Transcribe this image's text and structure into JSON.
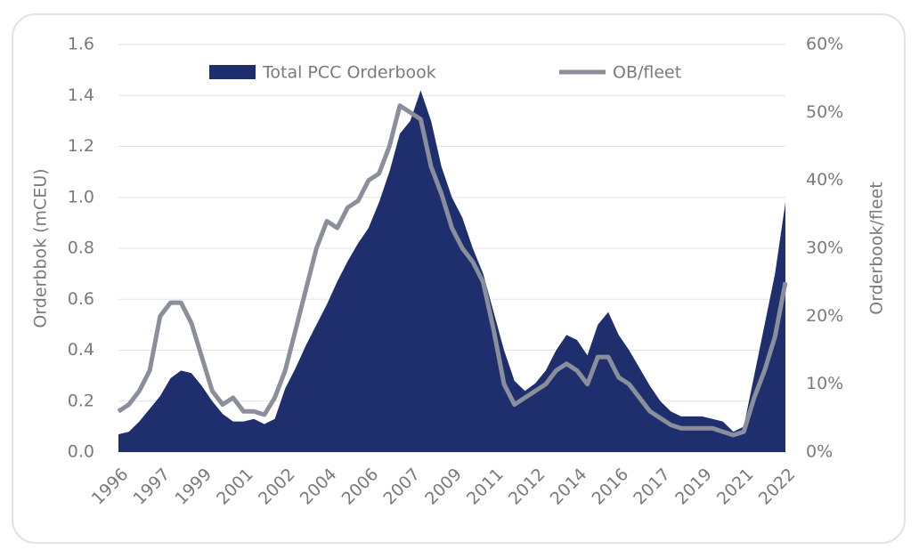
{
  "chart_data": {
    "type": "area-line",
    "legend": "top",
    "grid": true,
    "ylabel": "Orderbbok (mCEU)",
    "y2label": "Orderbook/fleet",
    "categories": [
      "1996",
      null,
      null,
      null,
      "1997",
      null,
      null,
      null,
      "1999",
      null,
      null,
      null,
      "2001",
      null,
      null,
      null,
      "2002",
      null,
      null,
      null,
      "2004",
      null,
      null,
      null,
      "2006",
      null,
      null,
      null,
      "2007",
      null,
      null,
      null,
      "2009",
      null,
      null,
      null,
      "2011",
      null,
      null,
      null,
      "2012",
      null,
      null,
      null,
      "2014",
      null,
      null,
      null,
      "2016",
      null,
      null,
      null,
      "2017",
      null,
      null,
      null,
      "2019",
      null,
      null,
      null,
      "2021",
      null,
      null,
      null,
      "2022"
    ],
    "series": [
      {
        "name": "Total PCC Orderbook",
        "type": "area",
        "axis": "y",
        "color": "#1f2f6e",
        "values": [
          0.07,
          0.08,
          0.12,
          0.17,
          0.22,
          0.29,
          0.32,
          0.31,
          0.26,
          0.2,
          0.15,
          0.12,
          0.12,
          0.13,
          0.11,
          0.13,
          0.25,
          0.33,
          0.42,
          0.5,
          0.58,
          0.67,
          0.75,
          0.82,
          0.88,
          0.98,
          1.1,
          1.25,
          1.3,
          1.42,
          1.3,
          1.12,
          1.0,
          0.92,
          0.8,
          0.7,
          0.55,
          0.4,
          0.28,
          0.24,
          0.27,
          0.32,
          0.4,
          0.46,
          0.44,
          0.38,
          0.5,
          0.55,
          0.46,
          0.4,
          0.33,
          0.26,
          0.2,
          0.16,
          0.14,
          0.14,
          0.14,
          0.13,
          0.12,
          0.08,
          0.1,
          0.3,
          0.5,
          0.7,
          0.98
        ]
      },
      {
        "name": "OB/fleet",
        "type": "line",
        "axis": "y2",
        "color": "#8a8f9b",
        "values": [
          6,
          7,
          9,
          12,
          20,
          22,
          22,
          19,
          14,
          9,
          7,
          8,
          6,
          6,
          5.5,
          8,
          12,
          18,
          24,
          30,
          34,
          33,
          36,
          37,
          40,
          41,
          45,
          51,
          50,
          49,
          42,
          38,
          33,
          30,
          28,
          25,
          18,
          10,
          7,
          8,
          9,
          10,
          12,
          13,
          12,
          10,
          14,
          14,
          11,
          10,
          8,
          6,
          5,
          4,
          3.5,
          3.5,
          3.5,
          3.5,
          3,
          2.5,
          3,
          8,
          12,
          17,
          25
        ]
      }
    ],
    "ylim": [
      0,
      1.6
    ],
    "yticks": [
      {
        "value": 0,
        "label": "0.0"
      },
      0.2,
      0.4,
      0.6,
      0.8,
      {
        "value": 1,
        "label": "1.0"
      },
      1.2,
      1.4,
      1.6
    ],
    "y2lim": [
      0,
      60
    ],
    "y2ticks": [
      {
        "value": 0,
        "label": "0%"
      },
      {
        "value": 10,
        "label": "10%"
      },
      {
        "value": 20,
        "label": "20%"
      },
      {
        "value": 30,
        "label": "30%"
      },
      {
        "value": 40,
        "label": "40%"
      },
      {
        "value": 50,
        "label": "50%"
      },
      {
        "value": 60,
        "label": "60%"
      }
    ]
  }
}
